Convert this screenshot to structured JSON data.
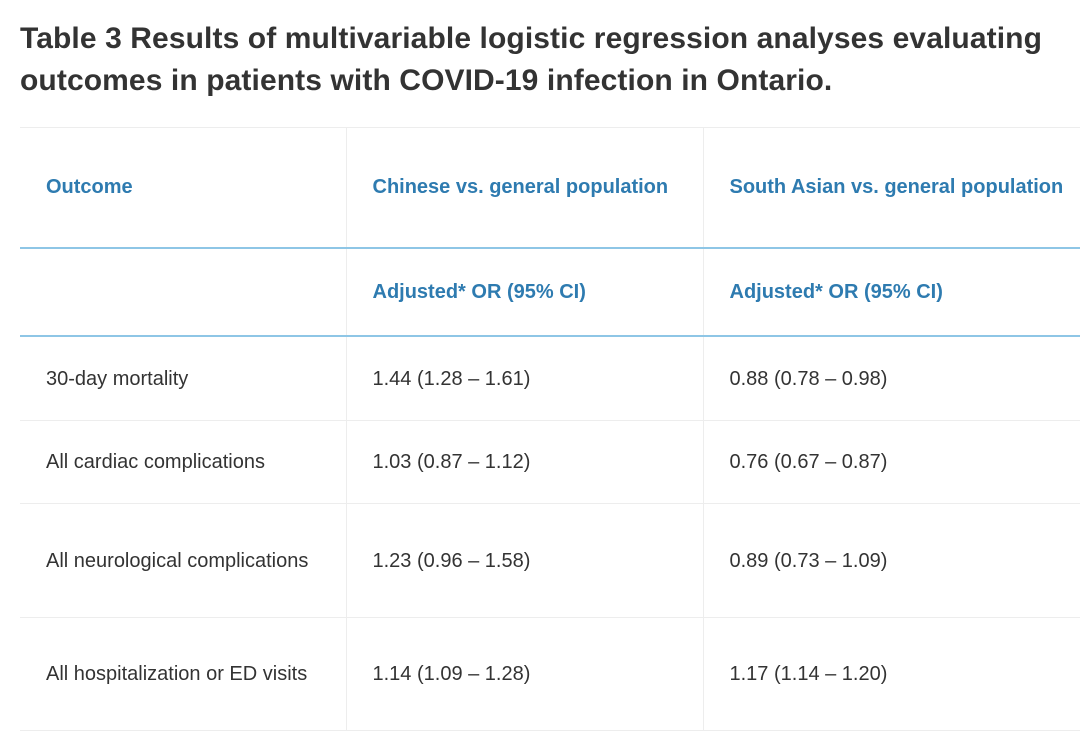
{
  "title": "Table 3  Results of multivariable logistic regression analyses evaluating outcomes in patients with COVID-19 infection in Ontario.",
  "columns": {
    "outcome": "Outcome",
    "chinese": "Chinese vs. general population",
    "south_asian": "South Asian vs. general population"
  },
  "subheader": {
    "outcome": "",
    "chinese": "Adjusted* OR (95% CI)",
    "south_asian": "Adjusted* OR (95% CI)"
  },
  "rows": [
    {
      "outcome": "30-day mortality",
      "chinese": "1.44 (1.28 – 1.61)",
      "south_asian": "0.88 (0.78 – 0.98)"
    },
    {
      "outcome": "All cardiac complications",
      "chinese": "1.03 (0.87 – 1.12)",
      "south_asian": "0.76 (0.67 – 0.87)"
    },
    {
      "outcome": "All neurological complications",
      "chinese": "1.23 (0.96 – 1.58)",
      "south_asian": "0.89 (0.73 – 1.09)"
    },
    {
      "outcome": "All hospitalization or ED visits",
      "chinese": "1.14 (1.09 – 1.28)",
      "south_asian": "1.17 (1.14 – 1.20)"
    }
  ],
  "colors": {
    "header_text": "#2e7bb0",
    "header_rule": "#8ec6e6",
    "body_text": "#333333"
  }
}
